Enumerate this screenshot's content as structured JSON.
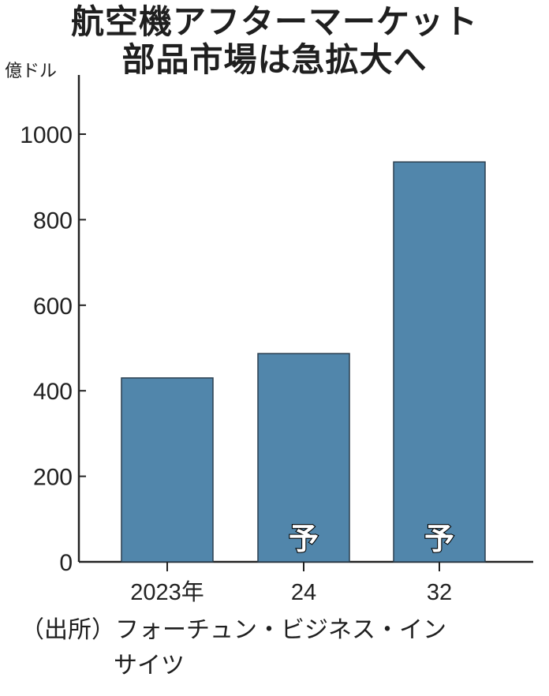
{
  "title_line1": "航空機アフターマーケット",
  "title_line2": "部品市場は急拡大へ",
  "unit": "億ドル",
  "source_line1": "（出所）フォーチュン・ビジネス・イン",
  "source_line2": "サイツ",
  "colors": {
    "bar": "#5186ab",
    "axis": "#222222"
  },
  "chart_data": {
    "type": "bar",
    "title": "航空機アフターマーケット部品市場は急拡大へ",
    "ylabel": "億ドル",
    "xlabel": "",
    "categories": [
      "2023年",
      "24",
      "32"
    ],
    "values": [
      430,
      487,
      935
    ],
    "forecast_labels": [
      "",
      "予",
      "予"
    ],
    "ylim": [
      0,
      1000
    ],
    "yticks": [
      0,
      200,
      400,
      600,
      800,
      1000
    ],
    "grid": false
  }
}
